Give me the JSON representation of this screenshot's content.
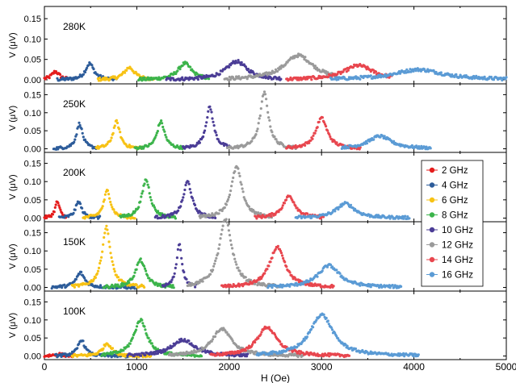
{
  "x_axis": {
    "label": "H (Oe)",
    "range": [
      0,
      5000
    ],
    "ticks": [
      0,
      1000,
      2000,
      3000,
      4000,
      5000
    ]
  },
  "y_axis_label": "V (μV)",
  "legend_entries": [
    {
      "label": "2 GHz",
      "color": "#e41c1c"
    },
    {
      "label": "4 GHz",
      "color": "#2d5c9a"
    },
    {
      "label": "6 GHz",
      "color": "#f7c214"
    },
    {
      "label": "8 GHz",
      "color": "#3cb44b"
    },
    {
      "label": "10 GHz",
      "color": "#4b3d96"
    },
    {
      "label": "12 GHz",
      "color": "#9a9a9a"
    },
    {
      "label": "14 GHz",
      "color": "#e8464e"
    },
    {
      "label": "16 GHz",
      "color": "#5b9bd5"
    }
  ],
  "chart_data": [
    {
      "type": "scatter",
      "panel_label": "280K",
      "ylim": [
        -0.01,
        0.18
      ],
      "y_ticks": [
        "0.00",
        "0.05",
        "0.10",
        "0.15"
      ],
      "series": [
        {
          "name": "2 GHz",
          "peak_x": 120,
          "peak_y": 0.02,
          "x_range": [
            0,
            260
          ],
          "width": 50
        },
        {
          "name": "4 GHz",
          "peak_x": 490,
          "peak_y": 0.04,
          "x_range": [
            140,
            780
          ],
          "width": 55
        },
        {
          "name": "6 GHz",
          "peak_x": 920,
          "peak_y": 0.03,
          "x_range": [
            580,
            1180
          ],
          "width": 70
        },
        {
          "name": "8 GHz",
          "peak_x": 1520,
          "peak_y": 0.04,
          "x_range": [
            1020,
            1780
          ],
          "width": 90
        },
        {
          "name": "10 GHz",
          "peak_x": 2080,
          "peak_y": 0.045,
          "x_range": [
            1320,
            2560
          ],
          "width": 140
        },
        {
          "name": "12 GHz",
          "peak_x": 2750,
          "peak_y": 0.06,
          "x_range": [
            1950,
            3150
          ],
          "width": 190
        },
        {
          "name": "14 GHz",
          "peak_x": 3400,
          "peak_y": 0.035,
          "x_range": [
            2620,
            3760
          ],
          "width": 190
        },
        {
          "name": "16 GHz",
          "peak_x": 4050,
          "peak_y": 0.025,
          "x_range": [
            3100,
            5000
          ],
          "width": 320
        }
      ]
    },
    {
      "type": "scatter",
      "panel_label": "250K",
      "ylim": [
        -0.01,
        0.18
      ],
      "y_ticks": [
        "0.00",
        "0.05",
        "0.10",
        "0.15"
      ],
      "series": [
        {
          "name": "4 GHz",
          "peak_x": 380,
          "peak_y": 0.07,
          "x_range": [
            100,
            560
          ],
          "width": 40
        },
        {
          "name": "6 GHz",
          "peak_x": 780,
          "peak_y": 0.075,
          "x_range": [
            560,
            1050
          ],
          "width": 45
        },
        {
          "name": "8 GHz",
          "peak_x": 1260,
          "peak_y": 0.075,
          "x_range": [
            980,
            1520
          ],
          "width": 50
        },
        {
          "name": "10 GHz",
          "peak_x": 1790,
          "peak_y": 0.115,
          "x_range": [
            1500,
            2000
          ],
          "width": 50
        },
        {
          "name": "12 GHz",
          "peak_x": 2380,
          "peak_y": 0.155,
          "x_range": [
            1980,
            2720
          ],
          "width": 55
        },
        {
          "name": "14 GHz",
          "peak_x": 3000,
          "peak_y": 0.085,
          "x_range": [
            2620,
            3420
          ],
          "width": 75
        },
        {
          "name": "16 GHz",
          "peak_x": 3630,
          "peak_y": 0.035,
          "x_range": [
            3220,
            4180
          ],
          "width": 150
        }
      ]
    },
    {
      "type": "scatter",
      "panel_label": "200K",
      "ylim": [
        -0.01,
        0.18
      ],
      "y_ticks": [
        "0.00",
        "0.05",
        "0.10",
        "0.15"
      ],
      "series": [
        {
          "name": "2 GHz",
          "peak_x": 140,
          "peak_y": 0.045,
          "x_range": [
            0,
            240
          ],
          "width": 30
        },
        {
          "name": "4 GHz",
          "peak_x": 370,
          "peak_y": 0.045,
          "x_range": [
            160,
            600
          ],
          "width": 40
        },
        {
          "name": "6 GHz",
          "peak_x": 680,
          "peak_y": 0.075,
          "x_range": [
            420,
            980
          ],
          "width": 45
        },
        {
          "name": "8 GHz",
          "peak_x": 1100,
          "peak_y": 0.105,
          "x_range": [
            820,
            1420
          ],
          "width": 55
        },
        {
          "name": "10 GHz",
          "peak_x": 1550,
          "peak_y": 0.1,
          "x_range": [
            1200,
            1850
          ],
          "width": 55
        },
        {
          "name": "12 GHz",
          "peak_x": 2080,
          "peak_y": 0.14,
          "x_range": [
            1680,
            2460
          ],
          "width": 70
        },
        {
          "name": "14 GHz",
          "peak_x": 2650,
          "peak_y": 0.06,
          "x_range": [
            2280,
            3020
          ],
          "width": 80
        },
        {
          "name": "16 GHz",
          "peak_x": 3260,
          "peak_y": 0.04,
          "x_range": [
            2720,
            3950
          ],
          "width": 120
        }
      ]
    },
    {
      "type": "scatter",
      "panel_label": "150K",
      "ylim": [
        -0.01,
        0.18
      ],
      "y_ticks": [
        "0.00",
        "0.05",
        "0.10",
        "0.15"
      ],
      "series": [
        {
          "name": "4 GHz",
          "peak_x": 390,
          "peak_y": 0.04,
          "x_range": [
            80,
            980
          ],
          "width": 55
        },
        {
          "name": "6 GHz",
          "peak_x": 670,
          "peak_y": 0.165,
          "x_range": [
            300,
            1080
          ],
          "width": 55
        },
        {
          "name": "8 GHz",
          "peak_x": 1040,
          "peak_y": 0.075,
          "x_range": [
            640,
            1400
          ],
          "width": 65
        },
        {
          "name": "10 GHz",
          "peak_x": 1460,
          "peak_y": 0.12,
          "x_range": [
            1280,
            1640
          ],
          "width": 35
        },
        {
          "name": "12 GHz",
          "peak_x": 1960,
          "peak_y": 0.185,
          "x_range": [
            1550,
            2580
          ],
          "width": 85
        },
        {
          "name": "14 GHz",
          "peak_x": 2520,
          "peak_y": 0.11,
          "x_range": [
            1920,
            3130
          ],
          "width": 100
        },
        {
          "name": "16 GHz",
          "peak_x": 3080,
          "peak_y": 0.06,
          "x_range": [
            2420,
            3860
          ],
          "width": 140
        }
      ]
    },
    {
      "type": "scatter",
      "panel_label": "100K",
      "ylim": [
        -0.01,
        0.18
      ],
      "y_ticks": [
        "0.00",
        "0.05",
        "0.10",
        "0.15"
      ],
      "series": [
        {
          "name": "2 GHz",
          "peak_x": 150,
          "peak_y": 0.005,
          "x_range": [
            0,
            320
          ],
          "width": 60
        },
        {
          "name": "4 GHz",
          "peak_x": 400,
          "peak_y": 0.045,
          "x_range": [
            120,
            900
          ],
          "width": 45
        },
        {
          "name": "6 GHz",
          "peak_x": 680,
          "peak_y": 0.035,
          "x_range": [
            300,
            1150
          ],
          "width": 60
        },
        {
          "name": "8 GHz",
          "peak_x": 1040,
          "peak_y": 0.1,
          "x_range": [
            620,
            1700
          ],
          "width": 85
        },
        {
          "name": "10 GHz",
          "peak_x": 1500,
          "peak_y": 0.045,
          "x_range": [
            900,
            2200
          ],
          "width": 150
        },
        {
          "name": "12 GHz",
          "peak_x": 1920,
          "peak_y": 0.075,
          "x_range": [
            1350,
            2800
          ],
          "width": 130
        },
        {
          "name": "14 GHz",
          "peak_x": 2410,
          "peak_y": 0.08,
          "x_range": [
            1800,
            3300
          ],
          "width": 130
        },
        {
          "name": "16 GHz",
          "peak_x": 3000,
          "peak_y": 0.115,
          "x_range": [
            2300,
            4050
          ],
          "width": 150
        }
      ]
    }
  ]
}
